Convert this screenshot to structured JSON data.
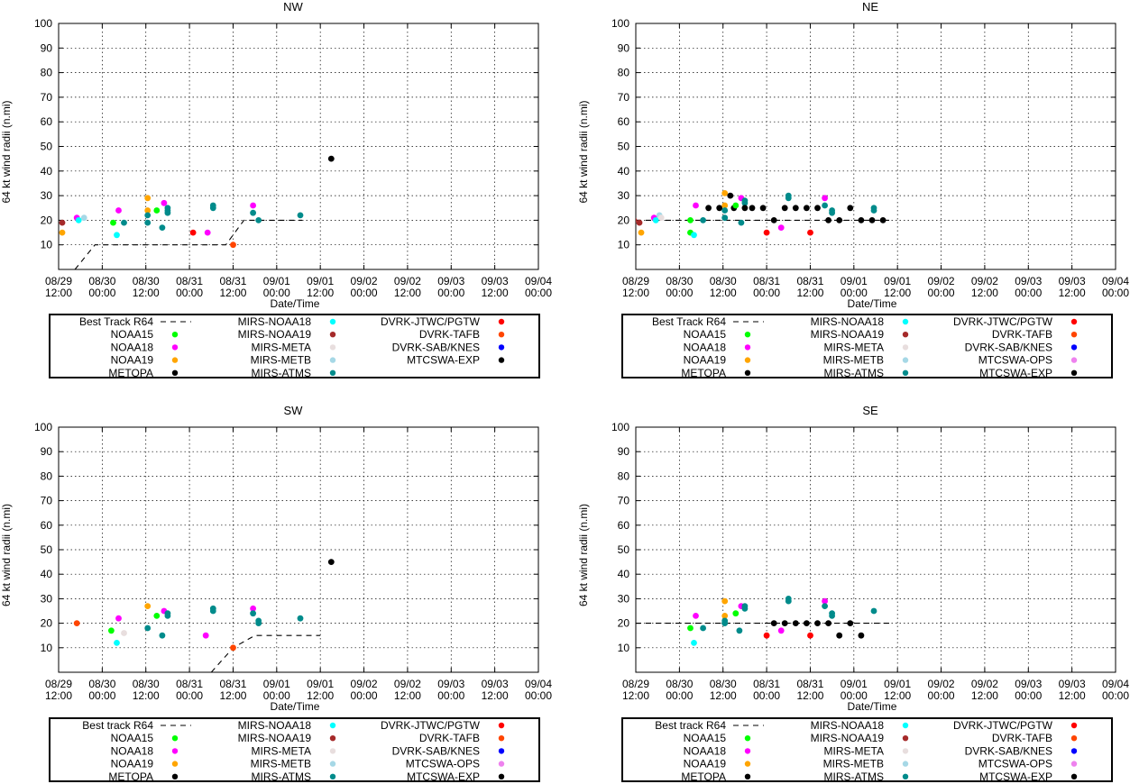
{
  "chart_data": [
    {
      "type": "scatter",
      "title": "NW",
      "xlabel": "Date/Time",
      "ylabel": "64 kt wind radii (n.mi)",
      "ylim": [
        0,
        100
      ],
      "yticks": [
        "100",
        "90",
        "80",
        "70",
        "60",
        "50",
        "40",
        "30",
        "20",
        "10"
      ],
      "xticks": [
        [
          "08/29",
          "12:00"
        ],
        [
          "08/30",
          "00:00"
        ],
        [
          "08/30",
          "12:00"
        ],
        [
          "08/31",
          "00:00"
        ],
        [
          "08/31",
          "12:00"
        ],
        [
          "09/01",
          "00:00"
        ],
        [
          "09/01",
          "12:00"
        ],
        [
          "09/02",
          "00:00"
        ],
        [
          "09/02",
          "12:00"
        ],
        [
          "09/03",
          "00:00"
        ],
        [
          "09/03",
          "12:00"
        ],
        [
          "09/04",
          "00:00"
        ]
      ],
      "xlim_hours": [
        0,
        132
      ],
      "best_track": [
        [
          4.5,
          0
        ],
        [
          10,
          10
        ],
        [
          46,
          10
        ],
        [
          51,
          20
        ],
        [
          67,
          20
        ]
      ],
      "legend": [
        [
          "Best Track R64",
          "line",
          "#000000"
        ],
        [
          "MIRS-NOAA18",
          "dot",
          "#00ffff"
        ],
        [
          "DVRK-JTWC/PGTW",
          "dot",
          "#ff0000"
        ],
        [
          "NOAA15",
          "dot",
          "#00ff00"
        ],
        [
          "MIRS-NOAA19",
          "dot",
          "#a52a2a"
        ],
        [
          "DVRK-TAFB",
          "dot",
          "#ff4500"
        ],
        [
          "NOAA18",
          "dot",
          "#ff00ff"
        ],
        [
          "MIRS-META",
          "dot",
          "#e8dede"
        ],
        [
          "DVRK-SAB/KNES",
          "dot",
          "#0000ff"
        ],
        [
          "NOAA19",
          "dot",
          "#ffa500"
        ],
        [
          "MIRS-METB",
          "dot",
          "#a6d8e6"
        ],
        [
          "MTCSWA-EXP",
          "dot",
          "#000000"
        ],
        [
          "METOPA",
          "dot",
          "#000000"
        ],
        [
          "MIRS-ATMS",
          "dot",
          "#008b8b"
        ],
        [
          "",
          "none",
          ""
        ]
      ],
      "points": [
        [
          -1.5,
          20,
          "#a52a2a"
        ],
        [
          1,
          19,
          "#a52a2a"
        ],
        [
          1,
          15,
          "#ffa500"
        ],
        [
          5,
          21,
          "#ff00ff"
        ],
        [
          5.5,
          20,
          "#00ffff"
        ],
        [
          7,
          21,
          "#a6d8e6"
        ],
        [
          15,
          19,
          "#00ff00"
        ],
        [
          16,
          14,
          "#00ffff"
        ],
        [
          16.5,
          24,
          "#ff00ff"
        ],
        [
          18,
          19,
          "#008b8b"
        ],
        [
          24.5,
          29,
          "#ffa500"
        ],
        [
          24.5,
          24,
          "#ffa500"
        ],
        [
          24.5,
          22,
          "#008b8b"
        ],
        [
          24.5,
          19,
          "#008b8b"
        ],
        [
          27,
          24,
          "#00ff00"
        ],
        [
          28.5,
          17,
          "#008b8b"
        ],
        [
          29,
          27,
          "#ff00ff"
        ],
        [
          30,
          25,
          "#008b8b"
        ],
        [
          30,
          24,
          "#008b8b"
        ],
        [
          30,
          23,
          "#008b8b"
        ],
        [
          37,
          15,
          "#ff0000"
        ],
        [
          41,
          15,
          "#ff00ff"
        ],
        [
          42.5,
          26,
          "#008b8b"
        ],
        [
          42.5,
          25,
          "#008b8b"
        ],
        [
          48,
          10,
          "#ff4500"
        ],
        [
          53.5,
          26,
          "#ff00ff"
        ],
        [
          53.5,
          23,
          "#008b8b"
        ],
        [
          55,
          20,
          "#008b8b"
        ],
        [
          66.5,
          22,
          "#008b8b"
        ],
        [
          75,
          45,
          "#000000"
        ]
      ]
    },
    {
      "type": "scatter",
      "title": "NE",
      "xlabel": "Date/Time",
      "ylabel": "64 kt wind radii (n.mi)",
      "ylim": [
        0,
        100
      ],
      "yticks": [
        "100",
        "90",
        "80",
        "70",
        "60",
        "50",
        "40",
        "30",
        "20",
        "10"
      ],
      "xticks": [
        [
          "08/29",
          "12:00"
        ],
        [
          "08/30",
          "00:00"
        ],
        [
          "08/30",
          "12:00"
        ],
        [
          "08/31",
          "00:00"
        ],
        [
          "08/31",
          "12:00"
        ],
        [
          "09/01",
          "00:00"
        ],
        [
          "09/01",
          "12:00"
        ],
        [
          "09/02",
          "00:00"
        ],
        [
          "09/02",
          "12:00"
        ],
        [
          "09/03",
          "00:00"
        ],
        [
          "09/03",
          "12:00"
        ],
        [
          "09/04",
          "00:00"
        ]
      ],
      "xlim_hours": [
        0,
        132
      ],
      "best_track": [
        [
          0,
          20
        ],
        [
          70,
          20
        ]
      ],
      "legend": [
        [
          "Best Track R64",
          "line",
          "#000000"
        ],
        [
          "MIRS-NOAA18",
          "dot",
          "#00ffff"
        ],
        [
          "DVRK-JTWC/PGTW",
          "dot",
          "#ff0000"
        ],
        [
          "NOAA15",
          "dot",
          "#00ff00"
        ],
        [
          "MIRS-NOAA19",
          "dot",
          "#a52a2a"
        ],
        [
          "DVRK-TAFB",
          "dot",
          "#ff4500"
        ],
        [
          "NOAA18",
          "dot",
          "#ff00ff"
        ],
        [
          "MIRS-META",
          "dot",
          "#e8dede"
        ],
        [
          "DVRK-SAB/KNES",
          "dot",
          "#0000ff"
        ],
        [
          "NOAA19",
          "dot",
          "#ffa500"
        ],
        [
          "MIRS-METB",
          "dot",
          "#a6d8e6"
        ],
        [
          "MTCSWA-OPS",
          "dot",
          "#ee82ee"
        ],
        [
          "METOPA",
          "dot",
          "#000000"
        ],
        [
          "MIRS-ATMS",
          "dot",
          "#008b8b"
        ],
        [
          "MTCSWA-EXP",
          "dot",
          "#000000"
        ]
      ],
      "points": [
        [
          -0.5,
          20,
          "#a52a2a"
        ],
        [
          1,
          19,
          "#a52a2a"
        ],
        [
          1.5,
          15,
          "#ffa500"
        ],
        [
          5,
          21,
          "#ff00ff"
        ],
        [
          5.5,
          20,
          "#00ffff"
        ],
        [
          6.5,
          22,
          "#a6d8e6"
        ],
        [
          7,
          21,
          "#e8dede"
        ],
        [
          15,
          20,
          "#00ff00"
        ],
        [
          15,
          15,
          "#00ff00"
        ],
        [
          16,
          14,
          "#00ffff"
        ],
        [
          16.5,
          26,
          "#ff00ff"
        ],
        [
          18.5,
          20,
          "#008b8b"
        ],
        [
          20,
          25,
          "#000000"
        ],
        [
          23,
          25,
          "#000000"
        ],
        [
          24.5,
          31,
          "#ffa500"
        ],
        [
          24.5,
          26,
          "#ffa500"
        ],
        [
          24.5,
          24,
          "#008b8b"
        ],
        [
          24.5,
          21,
          "#008b8b"
        ],
        [
          26,
          30,
          "#000000"
        ],
        [
          27,
          25,
          "#000000"
        ],
        [
          27.5,
          26,
          "#00ff00"
        ],
        [
          29,
          29,
          "#ff00ff"
        ],
        [
          29,
          19,
          "#008b8b"
        ],
        [
          30,
          28,
          "#008b8b"
        ],
        [
          30,
          27,
          "#008b8b"
        ],
        [
          30,
          25,
          "#000000"
        ],
        [
          32,
          25,
          "#000000"
        ],
        [
          35,
          25,
          "#000000"
        ],
        [
          36,
          15,
          "#ff0000"
        ],
        [
          38,
          20,
          "#000000"
        ],
        [
          40,
          17,
          "#ff00ff"
        ],
        [
          41,
          25,
          "#000000"
        ],
        [
          42,
          30,
          "#008b8b"
        ],
        [
          42,
          29,
          "#008b8b"
        ],
        [
          44,
          25,
          "#000000"
        ],
        [
          47,
          25,
          "#000000"
        ],
        [
          48,
          15,
          "#ff0000"
        ],
        [
          50,
          25,
          "#000000"
        ],
        [
          52,
          29,
          "#ff00ff"
        ],
        [
          52,
          26,
          "#008b8b"
        ],
        [
          53,
          20,
          "#000000"
        ],
        [
          54,
          24,
          "#008b8b"
        ],
        [
          54,
          23,
          "#008b8b"
        ],
        [
          56,
          20,
          "#000000"
        ],
        [
          59,
          25,
          "#000000"
        ],
        [
          62,
          20,
          "#000000"
        ],
        [
          65,
          20,
          "#000000"
        ],
        [
          65.5,
          25,
          "#008b8b"
        ],
        [
          65.5,
          24,
          "#008b8b"
        ],
        [
          68,
          20,
          "#000000"
        ]
      ]
    },
    {
      "type": "scatter",
      "title": "SW",
      "xlabel": "Date/Time",
      "ylabel": "64 kt wind radii (n.mi)",
      "ylim": [
        0,
        100
      ],
      "yticks": [
        "100",
        "90",
        "80",
        "70",
        "60",
        "50",
        "40",
        "30",
        "20",
        "10"
      ],
      "xticks": [
        [
          "08/29",
          "12:00"
        ],
        [
          "08/30",
          "00:00"
        ],
        [
          "08/30",
          "12:00"
        ],
        [
          "08/31",
          "00:00"
        ],
        [
          "08/31",
          "12:00"
        ],
        [
          "09/01",
          "00:00"
        ],
        [
          "09/01",
          "12:00"
        ],
        [
          "09/02",
          "00:00"
        ],
        [
          "09/02",
          "12:00"
        ],
        [
          "09/03",
          "00:00"
        ],
        [
          "09/03",
          "12:00"
        ],
        [
          "09/04",
          "00:00"
        ]
      ],
      "xlim_hours": [
        0,
        132
      ],
      "best_track": [
        [
          42,
          0
        ],
        [
          48,
          10
        ],
        [
          54,
          15
        ],
        [
          72,
          15
        ]
      ],
      "legend": [
        [
          "Best track R64",
          "line",
          "#000000"
        ],
        [
          "MIRS-NOAA18",
          "dot",
          "#00ffff"
        ],
        [
          "DVRK-JTWC/PGTW",
          "dot",
          "#ff0000"
        ],
        [
          "NOAA15",
          "dot",
          "#00ff00"
        ],
        [
          "MIRS-NOAA19",
          "dot",
          "#a52a2a"
        ],
        [
          "DVRK-TAFB",
          "dot",
          "#ff4500"
        ],
        [
          "NOAA18",
          "dot",
          "#ff00ff"
        ],
        [
          "MIRS-META",
          "dot",
          "#e8dede"
        ],
        [
          "DVRK-SAB/KNES",
          "dot",
          "#0000ff"
        ],
        [
          "NOAA19",
          "dot",
          "#ffa500"
        ],
        [
          "MIRS-METB",
          "dot",
          "#a6d8e6"
        ],
        [
          "MTCSWA-OPS",
          "dot",
          "#ee82ee"
        ],
        [
          "METOPA",
          "dot",
          "#000000"
        ],
        [
          "MIRS-ATMS",
          "dot",
          "#008b8b"
        ],
        [
          "MTCSWA-EXP",
          "dot",
          "#000000"
        ]
      ],
      "points": [
        [
          5,
          20,
          "#ff4500"
        ],
        [
          14.5,
          17,
          "#00ff00"
        ],
        [
          16,
          12,
          "#00ffff"
        ],
        [
          16.5,
          22,
          "#ff00ff"
        ],
        [
          18,
          16,
          "#e8dede"
        ],
        [
          24.5,
          27,
          "#ffa500"
        ],
        [
          24.5,
          18,
          "#008b8b"
        ],
        [
          27,
          23,
          "#00ff00"
        ],
        [
          28.5,
          15,
          "#008b8b"
        ],
        [
          29,
          25,
          "#ff00ff"
        ],
        [
          30,
          24,
          "#008b8b"
        ],
        [
          30,
          23,
          "#008b8b"
        ],
        [
          40.5,
          15,
          "#ff00ff"
        ],
        [
          42.5,
          26,
          "#008b8b"
        ],
        [
          42.5,
          25,
          "#008b8b"
        ],
        [
          48,
          10,
          "#ff4500"
        ],
        [
          53.5,
          26,
          "#ff00ff"
        ],
        [
          53.5,
          24,
          "#008b8b"
        ],
        [
          55,
          21,
          "#008b8b"
        ],
        [
          55,
          20,
          "#008b8b"
        ],
        [
          66.5,
          22,
          "#008b8b"
        ],
        [
          75,
          45,
          "#000000"
        ]
      ]
    },
    {
      "type": "scatter",
      "title": "SE",
      "xlabel": "Date/Time",
      "ylabel": "64 kt wind radii (n.mi)",
      "ylim": [
        0,
        100
      ],
      "yticks": [
        "100",
        "90",
        "80",
        "70",
        "60",
        "50",
        "40",
        "30",
        "20",
        "10"
      ],
      "xticks": [
        [
          "08/29",
          "12:00"
        ],
        [
          "08/30",
          "00:00"
        ],
        [
          "08/30",
          "12:00"
        ],
        [
          "08/31",
          "00:00"
        ],
        [
          "08/31",
          "12:00"
        ],
        [
          "09/01",
          "00:00"
        ],
        [
          "09/01",
          "12:00"
        ],
        [
          "09/02",
          "00:00"
        ],
        [
          "09/02",
          "12:00"
        ],
        [
          "09/03",
          "00:00"
        ],
        [
          "09/03",
          "12:00"
        ],
        [
          "09/04",
          "00:00"
        ]
      ],
      "xlim_hours": [
        0,
        132
      ],
      "best_track": [
        [
          0,
          20
        ],
        [
          70,
          20
        ]
      ],
      "legend": [
        [
          "Best track R64",
          "line",
          "#000000"
        ],
        [
          "MIRS-NOAA18",
          "dot",
          "#00ffff"
        ],
        [
          "DVRK-JTWC/PGTW",
          "dot",
          "#ff0000"
        ],
        [
          "NOAA15",
          "dot",
          "#00ff00"
        ],
        [
          "MIRS-NOAA19",
          "dot",
          "#a52a2a"
        ],
        [
          "DVRK-TAFB",
          "dot",
          "#ff4500"
        ],
        [
          "NOAA18",
          "dot",
          "#ff00ff"
        ],
        [
          "MIRS-META",
          "dot",
          "#e8dede"
        ],
        [
          "DVRK-SAB/KNES",
          "dot",
          "#0000ff"
        ],
        [
          "NOAA19",
          "dot",
          "#ffa500"
        ],
        [
          "MIRS-METB",
          "dot",
          "#a6d8e6"
        ],
        [
          "MTCSWA-OPS",
          "dot",
          "#ee82ee"
        ],
        [
          "METOPA",
          "dot",
          "#000000"
        ],
        [
          "MIRS-ATMS",
          "dot",
          "#008b8b"
        ],
        [
          "MTCSWA-EXP",
          "dot",
          "#000000"
        ]
      ],
      "points": [
        [
          15,
          18,
          "#00ff00"
        ],
        [
          16,
          12,
          "#00ffff"
        ],
        [
          16.5,
          23,
          "#ff00ff"
        ],
        [
          18.5,
          18,
          "#008b8b"
        ],
        [
          24.5,
          29,
          "#ffa500"
        ],
        [
          24.5,
          23,
          "#ffa500"
        ],
        [
          24.5,
          21,
          "#008b8b"
        ],
        [
          24.5,
          20,
          "#008b8b"
        ],
        [
          27.5,
          24,
          "#00ff00"
        ],
        [
          28.5,
          17,
          "#008b8b"
        ],
        [
          29,
          27,
          "#ff00ff"
        ],
        [
          30,
          27,
          "#008b8b"
        ],
        [
          30,
          26,
          "#008b8b"
        ],
        [
          36,
          15,
          "#ff0000"
        ],
        [
          38,
          20,
          "#000000"
        ],
        [
          40,
          17,
          "#ff00ff"
        ],
        [
          41,
          20,
          "#000000"
        ],
        [
          42,
          30,
          "#008b8b"
        ],
        [
          42,
          29,
          "#008b8b"
        ],
        [
          44,
          20,
          "#000000"
        ],
        [
          47,
          20,
          "#000000"
        ],
        [
          48,
          15,
          "#ff0000"
        ],
        [
          50,
          20,
          "#000000"
        ],
        [
          52,
          29,
          "#ff00ff"
        ],
        [
          52,
          27,
          "#008b8b"
        ],
        [
          53,
          20,
          "#000000"
        ],
        [
          54,
          24,
          "#008b8b"
        ],
        [
          54,
          23,
          "#008b8b"
        ],
        [
          56,
          15,
          "#000000"
        ],
        [
          59,
          20,
          "#000000"
        ],
        [
          62,
          15,
          "#000000"
        ],
        [
          65.5,
          25,
          "#008b8b"
        ]
      ]
    }
  ]
}
